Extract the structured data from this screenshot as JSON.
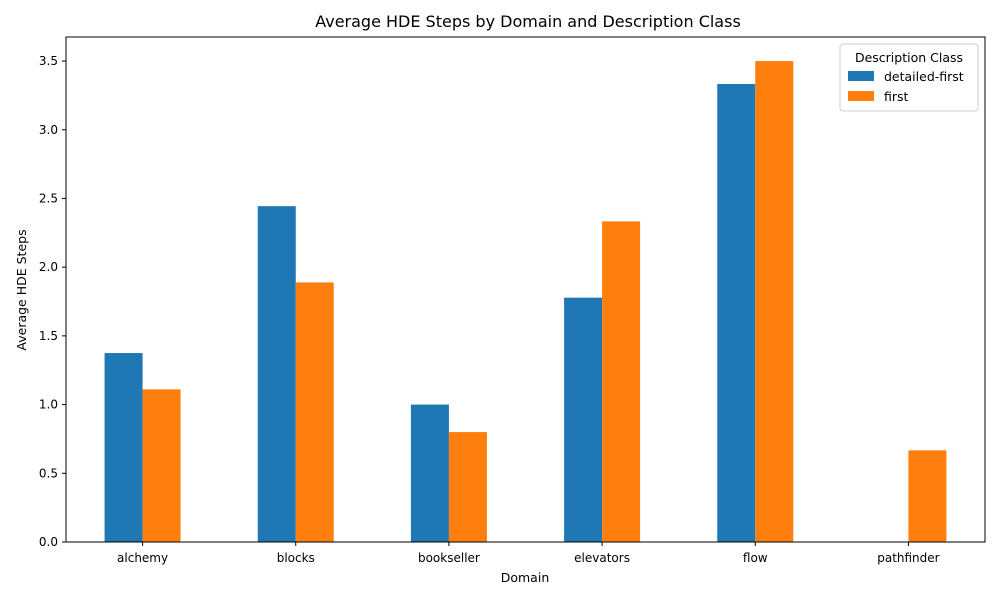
{
  "chart_data": {
    "type": "bar",
    "title": "Average HDE Steps by Domain and Description Class",
    "xlabel": "Domain",
    "ylabel": "Average HDE Steps",
    "categories": [
      "alchemy",
      "blocks",
      "bookseller",
      "elevators",
      "flow",
      "pathfinder"
    ],
    "series": [
      {
        "name": "detailed-first",
        "color": "#1f77b4",
        "values": [
          1.375,
          2.444,
          1.0,
          1.778,
          3.333,
          null
        ]
      },
      {
        "name": "first",
        "color": "#ff7f0e",
        "values": [
          1.111,
          1.889,
          0.8,
          2.333,
          3.5,
          0.667
        ]
      }
    ],
    "ylim": [
      0,
      3.675
    ],
    "yticks": [
      0.0,
      0.5,
      1.0,
      1.5,
      2.0,
      2.5,
      3.0,
      3.5
    ],
    "ytick_labels": [
      "0.0",
      "0.5",
      "1.0",
      "1.5",
      "2.0",
      "2.5",
      "3.0",
      "3.5"
    ],
    "grid": false,
    "legend": {
      "title": "Description Class",
      "placement": "top-right"
    }
  }
}
